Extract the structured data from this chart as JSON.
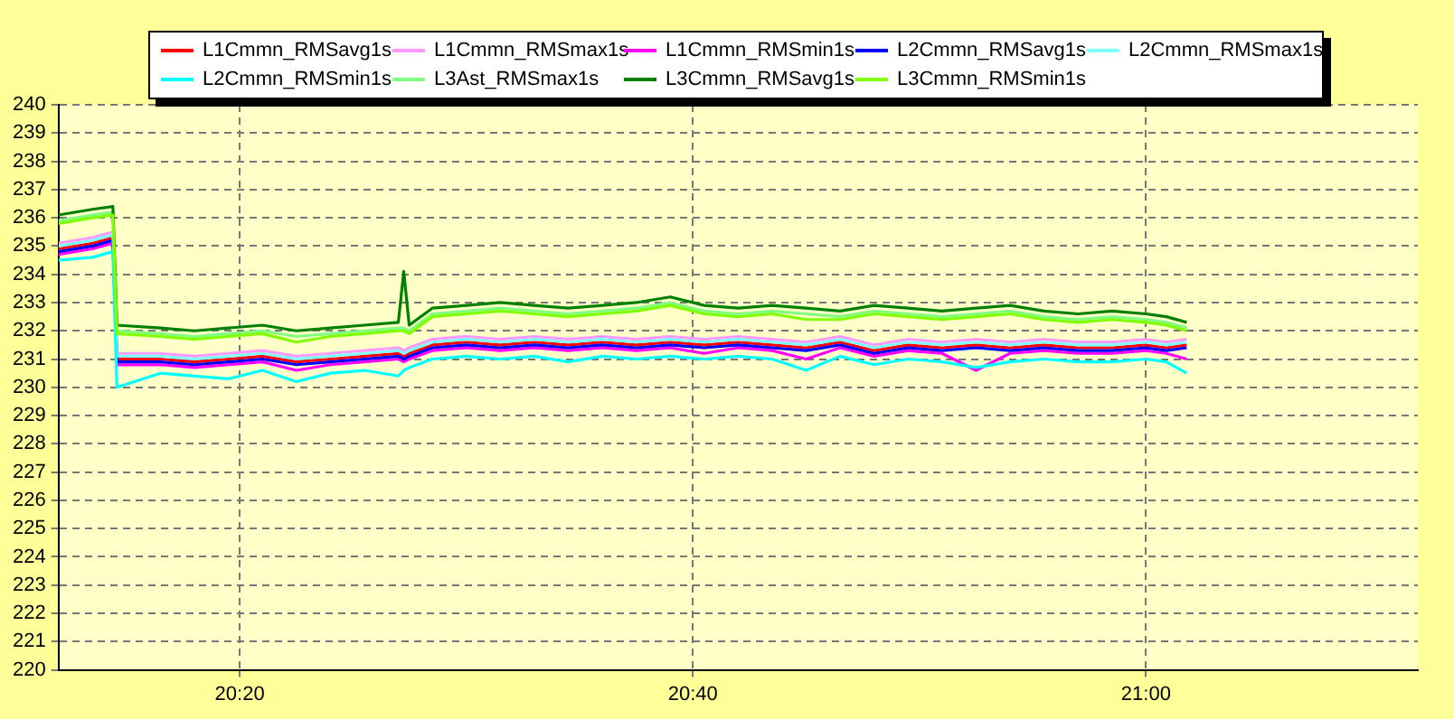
{
  "chart_data": {
    "type": "line",
    "legend": "top",
    "grid": true,
    "marker": "none",
    "line_style": "solid",
    "x": [
      20.2,
      20.225,
      20.24,
      20.243,
      20.275,
      20.3,
      20.325,
      20.35,
      20.375,
      20.4,
      20.425,
      20.45,
      20.454,
      20.458,
      20.475,
      20.5,
      20.525,
      20.55,
      20.575,
      20.6,
      20.625,
      20.65,
      20.675,
      20.7,
      20.725,
      20.75,
      20.775,
      20.8,
      20.825,
      20.85,
      20.875,
      20.9,
      20.925,
      20.95,
      20.975,
      21.0,
      21.015,
      21.03
    ],
    "xlim": [
      20.2,
      21.2
    ],
    "xticks": [
      {
        "value": 20.3333,
        "label": "20:20"
      },
      {
        "value": 20.6667,
        "label": "20:40"
      },
      {
        "value": 21.0,
        "label": "21:00"
      }
    ],
    "ylim": [
      220,
      240
    ],
    "yticks": [
      220,
      221,
      222,
      223,
      224,
      225,
      226,
      227,
      228,
      229,
      230,
      231,
      232,
      233,
      234,
      235,
      236,
      237,
      238,
      239,
      240
    ],
    "series": [
      {
        "name": "L1Cmmn_RMSavg1s",
        "color": "#ff0000",
        "values": [
          234.9,
          235.1,
          235.3,
          231.0,
          231.0,
          230.9,
          231.0,
          231.1,
          230.9,
          231.0,
          231.1,
          231.2,
          231.1,
          231.2,
          231.5,
          231.6,
          231.5,
          231.6,
          231.5,
          231.6,
          231.5,
          231.6,
          231.5,
          231.6,
          231.5,
          231.4,
          231.6,
          231.3,
          231.5,
          231.4,
          231.5,
          231.4,
          231.5,
          231.4,
          231.4,
          231.5,
          231.4,
          231.5
        ]
      },
      {
        "name": "L1Cmmn_RMSmax1s",
        "color": "#ff99ff",
        "values": [
          235.1,
          235.3,
          235.5,
          231.2,
          231.2,
          231.1,
          231.2,
          231.3,
          231.1,
          231.2,
          231.3,
          231.4,
          231.3,
          231.4,
          231.7,
          231.8,
          231.7,
          231.8,
          231.7,
          231.8,
          231.7,
          231.8,
          231.7,
          231.8,
          231.7,
          231.6,
          231.8,
          231.5,
          231.7,
          231.6,
          231.7,
          231.6,
          231.7,
          231.6,
          231.6,
          231.7,
          231.6,
          231.7
        ]
      },
      {
        "name": "L1Cmmn_RMSmin1s",
        "color": "#ff00ff",
        "values": [
          234.7,
          234.9,
          235.1,
          230.8,
          230.8,
          230.7,
          230.8,
          230.9,
          230.6,
          230.8,
          230.9,
          231.0,
          230.9,
          231.0,
          231.3,
          231.4,
          231.3,
          231.4,
          231.3,
          231.4,
          231.3,
          231.4,
          231.2,
          231.4,
          231.3,
          231.0,
          231.4,
          231.1,
          231.3,
          231.2,
          230.6,
          231.2,
          231.3,
          231.2,
          231.2,
          231.3,
          231.2,
          231.0
        ]
      },
      {
        "name": "L2Cmmn_RMSavg1s",
        "color": "#0000ff",
        "values": [
          234.8,
          235.0,
          235.2,
          230.9,
          230.9,
          230.8,
          230.9,
          231.0,
          230.8,
          230.9,
          231.0,
          231.1,
          231.0,
          231.1,
          231.4,
          231.5,
          231.4,
          231.5,
          231.4,
          231.5,
          231.4,
          231.5,
          231.4,
          231.5,
          231.4,
          231.3,
          231.5,
          231.2,
          231.4,
          231.3,
          231.4,
          231.3,
          231.4,
          231.3,
          231.3,
          231.4,
          231.3,
          231.4
        ]
      },
      {
        "name": "L2Cmmn_RMSmax1s",
        "color": "#80ffff",
        "values": [
          235.0,
          235.2,
          235.4,
          231.1,
          231.1,
          231.0,
          231.1,
          231.2,
          231.0,
          231.1,
          231.2,
          231.3,
          231.2,
          231.3,
          231.6,
          231.7,
          231.6,
          231.7,
          231.6,
          231.7,
          231.6,
          231.7,
          231.6,
          231.7,
          231.6,
          231.5,
          231.7,
          231.4,
          231.6,
          231.5,
          231.6,
          231.5,
          231.6,
          231.5,
          231.5,
          231.6,
          231.5,
          231.6
        ]
      },
      {
        "name": "L2Cmmn_RMSmin1s",
        "color": "#00ffff",
        "values": [
          234.5,
          234.6,
          234.8,
          230.0,
          230.5,
          230.4,
          230.3,
          230.6,
          230.2,
          230.5,
          230.6,
          230.4,
          230.6,
          230.7,
          231.0,
          231.1,
          231.0,
          231.1,
          230.9,
          231.1,
          231.0,
          231.1,
          231.0,
          231.1,
          231.0,
          230.6,
          231.1,
          230.8,
          231.0,
          230.9,
          230.7,
          230.9,
          231.0,
          230.9,
          230.9,
          231.0,
          230.9,
          230.5
        ]
      },
      {
        "name": "L3Ast_RMSmax1s",
        "color": "#80ff80",
        "values": [
          235.9,
          236.1,
          236.2,
          232.0,
          231.9,
          231.8,
          231.9,
          232.0,
          231.8,
          231.9,
          232.0,
          232.1,
          232.1,
          232.0,
          232.6,
          232.7,
          232.8,
          232.7,
          232.6,
          232.7,
          232.8,
          233.0,
          232.7,
          232.6,
          232.7,
          232.6,
          232.5,
          232.7,
          232.6,
          232.5,
          232.6,
          232.7,
          232.5,
          232.4,
          232.5,
          232.4,
          232.3,
          232.1
        ]
      },
      {
        "name": "L3Cmmn_RMSavg1s",
        "color": "#008000",
        "values": [
          236.1,
          236.3,
          236.4,
          232.2,
          232.1,
          232.0,
          232.1,
          232.2,
          232.0,
          232.1,
          232.2,
          232.3,
          234.1,
          232.2,
          232.8,
          232.9,
          233.0,
          232.9,
          232.8,
          232.9,
          233.0,
          233.2,
          232.9,
          232.8,
          232.9,
          232.8,
          232.7,
          232.9,
          232.8,
          232.7,
          232.8,
          232.9,
          232.7,
          232.6,
          232.7,
          232.6,
          232.5,
          232.3
        ]
      },
      {
        "name": "L3Cmmn_RMSmin1s",
        "color": "#80ff00",
        "values": [
          235.8,
          236.0,
          236.1,
          231.9,
          231.8,
          231.7,
          231.8,
          231.9,
          231.6,
          231.8,
          231.9,
          232.0,
          232.0,
          231.9,
          232.5,
          232.6,
          232.7,
          232.6,
          232.5,
          232.6,
          232.7,
          232.9,
          232.6,
          232.5,
          232.6,
          232.4,
          232.4,
          232.6,
          232.5,
          232.4,
          232.5,
          232.6,
          232.4,
          232.3,
          232.4,
          232.3,
          232.2,
          232.0
        ]
      }
    ]
  }
}
